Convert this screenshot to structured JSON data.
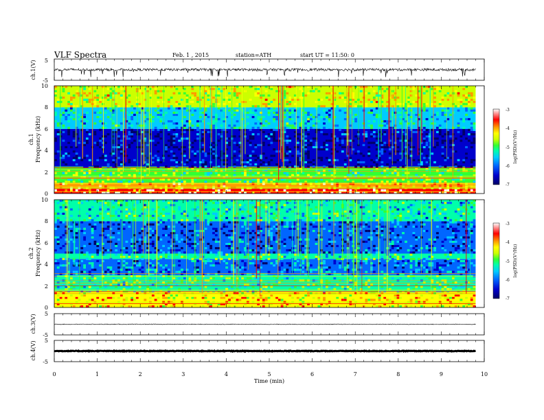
{
  "header": {
    "title": "VLF Spectra",
    "date": "Feb. 1 , 2015",
    "station": "station=ATH",
    "start": "start UT = 11:50: 0"
  },
  "colors": {
    "colormap": [
      "#000066",
      "#0000cc",
      "#0066ff",
      "#00ccff",
      "#00ffaa",
      "#33ff33",
      "#ccff00",
      "#ffff00",
      "#ff9900",
      "#ff0000",
      "#ffffff"
    ],
    "trace": "#000000"
  },
  "chart_data": [
    {
      "type": "line",
      "panel": "ch1-waveform",
      "ylabel": "ch.1(V)",
      "ylim": [
        -5,
        5
      ],
      "yticks": [
        "5",
        "-5"
      ],
      "xlim": [
        0,
        10
      ],
      "description_values": {
        "baseline_V": 0,
        "typical_amplitude_V": 1.2,
        "spike_amplitude_V": 3.5
      }
    },
    {
      "type": "heatmap",
      "panel": "ch1-spectrogram",
      "ylabel": "ch.1\nFrequency (kHz)",
      "ylim": [
        0,
        10
      ],
      "yticks": [
        "0",
        "2",
        "4",
        "6",
        "8",
        "10"
      ],
      "xlim": [
        0,
        10
      ],
      "colorbar": {
        "label": "log(PSD)(V²/Hz)",
        "ticks": [
          "-3",
          "-4",
          "-5",
          "-6",
          "-7"
        ],
        "range": [
          -7,
          -3
        ]
      },
      "bands_kHz_logPSD": [
        [
          0,
          0.5,
          -3.5
        ],
        [
          0.5,
          1.0,
          -4.0
        ],
        [
          1.0,
          2.5,
          -5.0
        ],
        [
          2.5,
          6.0,
          -6.6
        ],
        [
          6.0,
          8.0,
          -5.6
        ],
        [
          8.0,
          10.0,
          -4.5
        ]
      ]
    },
    {
      "type": "heatmap",
      "panel": "ch2-spectrogram",
      "ylabel": "ch.2\nFrequency (kHz)",
      "ylim": [
        0,
        10
      ],
      "yticks": [
        "0",
        "2",
        "4",
        "6",
        "8",
        "10"
      ],
      "xlim": [
        0,
        10
      ],
      "colorbar": {
        "label": "log(PSD)(V²/Hz)",
        "ticks": [
          "-3",
          "-4",
          "-5",
          "-6",
          "-7"
        ],
        "range": [
          -7,
          -3
        ]
      },
      "bands_kHz_logPSD": [
        [
          0,
          1.5,
          -4.2
        ],
        [
          1.5,
          3.0,
          -5.2
        ],
        [
          3.0,
          4.5,
          -6.0
        ],
        [
          4.5,
          5.0,
          -5.3
        ],
        [
          5.0,
          8.0,
          -6.2
        ],
        [
          8.0,
          10.0,
          -5.5
        ]
      ]
    },
    {
      "type": "line",
      "panel": "ch3-waveform",
      "ylabel": "ch.3(V)",
      "ylim": [
        -5,
        5
      ],
      "yticks": [
        "5",
        "-5"
      ],
      "xlim": [
        0,
        10
      ],
      "description_values": {
        "baseline_V": 0,
        "typical_amplitude_V": 0.3
      }
    },
    {
      "type": "line",
      "panel": "ch4-waveform",
      "ylabel": "ch.4(V)",
      "ylim": [
        -5,
        5
      ],
      "yticks": [
        "5",
        "-5"
      ],
      "xlim": [
        0,
        10
      ],
      "description_values": {
        "baseline_V": 0,
        "typical_amplitude_V": 0.3
      }
    }
  ],
  "xaxis": {
    "label": "Time (min)",
    "ticks": [
      "0",
      "1",
      "2",
      "3",
      "4",
      "5",
      "6",
      "7",
      "8",
      "9",
      "10"
    ],
    "data_end_min": 9.8
  }
}
